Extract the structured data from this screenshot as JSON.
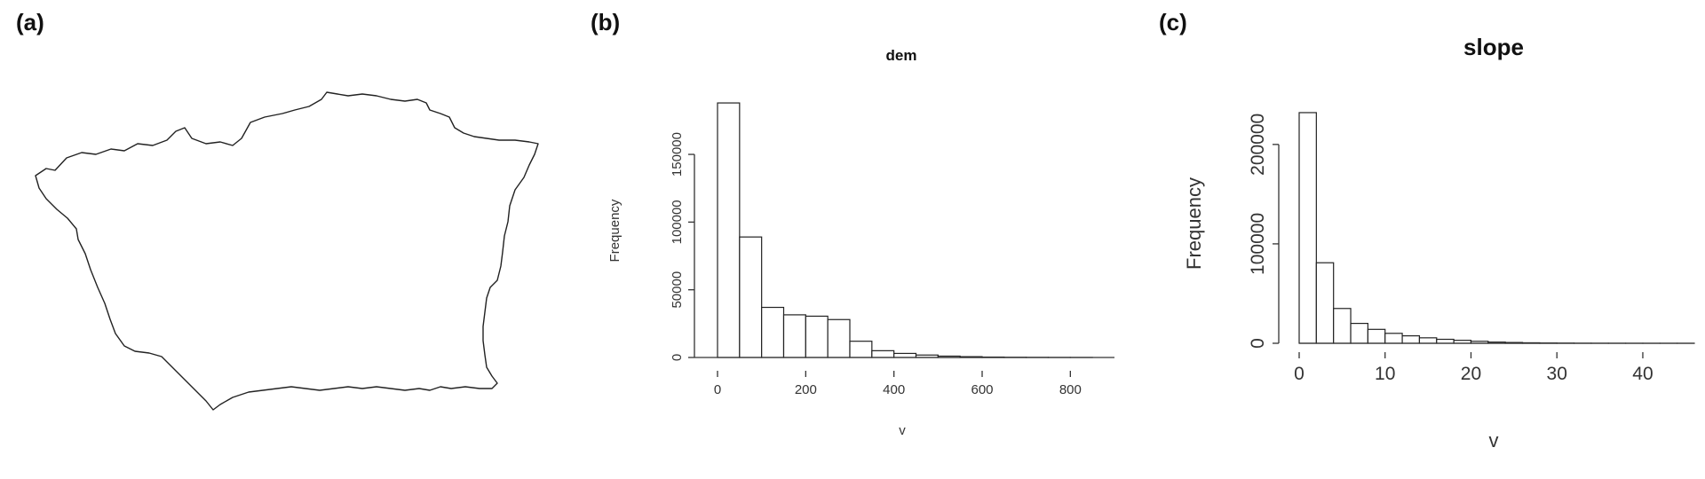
{
  "panels": {
    "a": {
      "label": "(a)"
    },
    "b": {
      "label": "(b)"
    },
    "c": {
      "label": "(c)"
    }
  },
  "chart_data": [
    {
      "panel": "b",
      "type": "bar",
      "title": "dem",
      "xlabel": "v",
      "ylabel": "Frequency",
      "bin_width": 50,
      "bin_start": 0,
      "values": [
        188000,
        89000,
        37000,
        31500,
        30500,
        28000,
        12000,
        5000,
        3000,
        1800,
        1000,
        600,
        300,
        150,
        80,
        40,
        20
      ],
      "xticks": [
        0,
        200,
        400,
        600,
        800
      ],
      "yticks": [
        0,
        50000,
        100000,
        150000
      ],
      "xlim": [
        0,
        900
      ],
      "ylim": [
        0,
        190000
      ],
      "grid": false
    },
    {
      "panel": "c",
      "type": "bar",
      "title": "slope",
      "xlabel": "v",
      "ylabel": "Frequency",
      "bin_width": 2,
      "bin_start": 0,
      "values": [
        232000,
        81000,
        35000,
        20000,
        14000,
        10000,
        7500,
        5500,
        4000,
        3000,
        2000,
        1200,
        800,
        500,
        300,
        200,
        100,
        60,
        40,
        20,
        10,
        5,
        3
      ],
      "xticks": [
        0,
        10,
        20,
        30,
        40
      ],
      "yticks": [
        0,
        100000,
        200000
      ],
      "xlim": [
        0,
        46
      ],
      "ylim": [
        0,
        240000
      ],
      "grid": false
    }
  ]
}
